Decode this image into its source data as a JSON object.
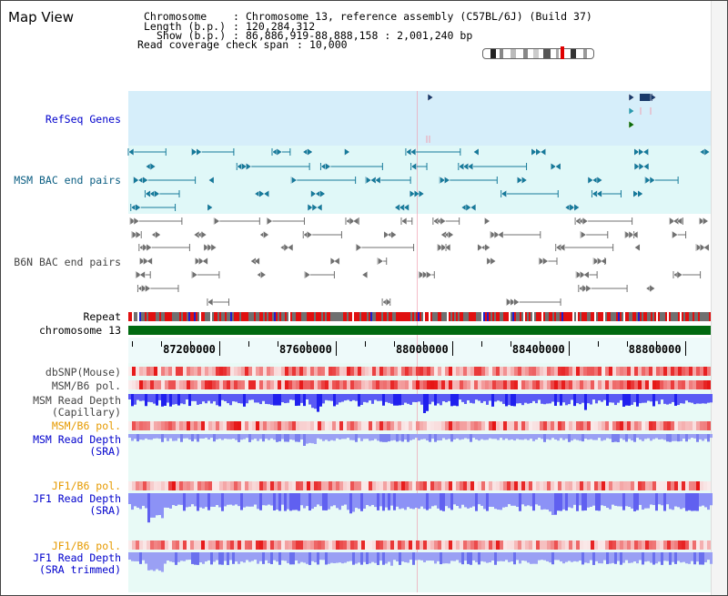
{
  "view_title": "Map View",
  "header": {
    "chromosome_label": "Chromosome",
    "chromosome_value": "Chromosome 13, reference assembly (C57BL/6J) (Build 37)",
    "length_label": "Length (b.p.)",
    "length_value": "120,284,312",
    "show_label": "Show (b.p.)",
    "show_value": "86,886,919-88,888,158 : 2,001,240 bp",
    "coverage_label": "Read coverage check span",
    "coverage_value": "10,000"
  },
  "tracks": {
    "refseq": "RefSeq Genes",
    "msm_bac": "MSM BAC end pairs",
    "b6n_bac": "B6N BAC end pairs",
    "repeat": "Repeat",
    "chromosome": "chromosome 13",
    "dbsnp": "dbSNP(Mouse)",
    "msm_b6_pol_1": "MSM/B6 pol.",
    "msm_read_depth_cap_1": "MSM Read Depth",
    "msm_read_depth_cap_2": "(Capillary)",
    "msm_b6_pol_2": "MSM/B6 pol.",
    "msm_read_depth_sra_1": "MSM Read Depth",
    "msm_read_depth_sra_2": "(SRA)",
    "jf1_b6_pol_1": "JF1/B6 pol.",
    "jf1_read_depth_sra_1": "JF1 Read Depth",
    "jf1_read_depth_sra_2": "(SRA)",
    "jf1_b6_pol_2": "JF1/B6 pol.",
    "jf1_read_depth_trim_1": "JF1 Read Depth",
    "jf1_read_depth_trim_2": "(SRA trimmed)"
  },
  "axis": {
    "range_bp": [
      86886919,
      88888158
    ],
    "ticks": [
      "87200000",
      "87600000",
      "88000000",
      "88400000",
      "88800000"
    ],
    "tick_values": [
      87200000,
      87600000,
      88000000,
      88400000,
      88800000
    ]
  },
  "colors": {
    "refseq_bg": "#d6eefa",
    "msm_bg": "#e0f8f8",
    "axis_bg": "#eefafa",
    "lower_bg": "#e4f8f4",
    "gene_dark": "#1a3a6a",
    "gene_teal": "#2a9ab0",
    "gene_green": "#0a6a0a",
    "msm_feature": "#167a9a",
    "b6n_feature": "#707070",
    "chromosome_bar": "#006a10",
    "repeat_red": "#e01010",
    "repeat_gray": "#707070",
    "depth_blue": "#4444ee",
    "depth_light": "#9aa0f4",
    "pol_red": "#ee1010",
    "pol_pink": "#f8b8b8"
  }
}
